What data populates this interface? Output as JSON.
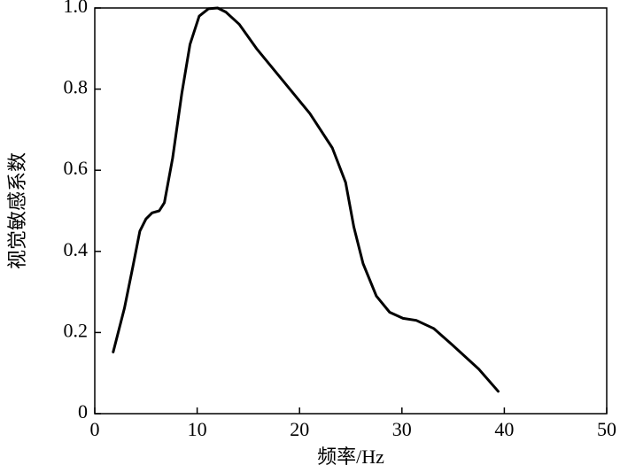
{
  "chart_data": {
    "type": "line",
    "xlabel": "频率/Hz",
    "ylabel": "视觉敏感系数",
    "xlim": [
      0,
      50
    ],
    "xticks": [
      0,
      10,
      20,
      30,
      40,
      50
    ],
    "ylim": [
      0,
      1
    ],
    "yticks": [
      0,
      0.2,
      0.4,
      0.6,
      0.8,
      {
        "value": 1,
        "label": "1.0"
      }
    ],
    "series": [
      {
        "color": "#000000",
        "x": [
          1.8,
          2.9,
          3.7,
          4.4,
          5.0,
          5.6,
          6.3,
          6.8,
          7.6,
          8.5,
          9.3,
          10.2,
          11.1,
          12.0,
          12.8,
          14.1,
          15.8,
          18.4,
          21.0,
          23.2,
          24.5,
          25.3,
          26.2,
          27.5,
          28.8,
          30.1,
          31.4,
          33.1,
          34.9,
          37.5,
          39.4
        ],
        "values": [
          0.152,
          0.26,
          0.36,
          0.45,
          0.48,
          0.495,
          0.5,
          0.52,
          0.63,
          0.79,
          0.91,
          0.98,
          0.998,
          1.0,
          0.99,
          0.96,
          0.9,
          0.82,
          0.74,
          0.655,
          0.57,
          0.46,
          0.37,
          0.29,
          0.25,
          0.235,
          0.23,
          0.21,
          0.17,
          0.11,
          0.055
        ]
      }
    ]
  }
}
